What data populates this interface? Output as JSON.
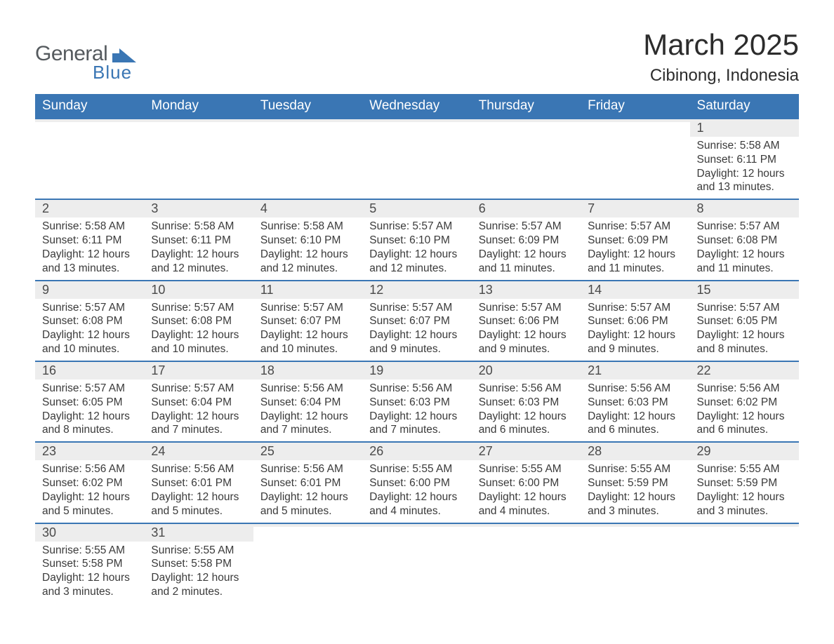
{
  "brand": {
    "word1": "General",
    "word2": "Blue",
    "flag_color": "#3a76b4"
  },
  "title": "March 2025",
  "location": "Cibinong, Indonesia",
  "header_bg": "#3a76b4",
  "header_fg": "#ffffff",
  "daynum_bg": "#ededed",
  "row_border": "#3a76b4",
  "columns": [
    "Sunday",
    "Monday",
    "Tuesday",
    "Wednesday",
    "Thursday",
    "Friday",
    "Saturday"
  ],
  "weeks": [
    [
      {
        "n": "",
        "sr": "",
        "ss": "",
        "dl": ""
      },
      {
        "n": "",
        "sr": "",
        "ss": "",
        "dl": ""
      },
      {
        "n": "",
        "sr": "",
        "ss": "",
        "dl": ""
      },
      {
        "n": "",
        "sr": "",
        "ss": "",
        "dl": ""
      },
      {
        "n": "",
        "sr": "",
        "ss": "",
        "dl": ""
      },
      {
        "n": "",
        "sr": "",
        "ss": "",
        "dl": ""
      },
      {
        "n": "1",
        "sr": "Sunrise: 5:58 AM",
        "ss": "Sunset: 6:11 PM",
        "dl": "Daylight: 12 hours and 13 minutes."
      }
    ],
    [
      {
        "n": "2",
        "sr": "Sunrise: 5:58 AM",
        "ss": "Sunset: 6:11 PM",
        "dl": "Daylight: 12 hours and 13 minutes."
      },
      {
        "n": "3",
        "sr": "Sunrise: 5:58 AM",
        "ss": "Sunset: 6:11 PM",
        "dl": "Daylight: 12 hours and 12 minutes."
      },
      {
        "n": "4",
        "sr": "Sunrise: 5:58 AM",
        "ss": "Sunset: 6:10 PM",
        "dl": "Daylight: 12 hours and 12 minutes."
      },
      {
        "n": "5",
        "sr": "Sunrise: 5:57 AM",
        "ss": "Sunset: 6:10 PM",
        "dl": "Daylight: 12 hours and 12 minutes."
      },
      {
        "n": "6",
        "sr": "Sunrise: 5:57 AM",
        "ss": "Sunset: 6:09 PM",
        "dl": "Daylight: 12 hours and 11 minutes."
      },
      {
        "n": "7",
        "sr": "Sunrise: 5:57 AM",
        "ss": "Sunset: 6:09 PM",
        "dl": "Daylight: 12 hours and 11 minutes."
      },
      {
        "n": "8",
        "sr": "Sunrise: 5:57 AM",
        "ss": "Sunset: 6:08 PM",
        "dl": "Daylight: 12 hours and 11 minutes."
      }
    ],
    [
      {
        "n": "9",
        "sr": "Sunrise: 5:57 AM",
        "ss": "Sunset: 6:08 PM",
        "dl": "Daylight: 12 hours and 10 minutes."
      },
      {
        "n": "10",
        "sr": "Sunrise: 5:57 AM",
        "ss": "Sunset: 6:08 PM",
        "dl": "Daylight: 12 hours and 10 minutes."
      },
      {
        "n": "11",
        "sr": "Sunrise: 5:57 AM",
        "ss": "Sunset: 6:07 PM",
        "dl": "Daylight: 12 hours and 10 minutes."
      },
      {
        "n": "12",
        "sr": "Sunrise: 5:57 AM",
        "ss": "Sunset: 6:07 PM",
        "dl": "Daylight: 12 hours and 9 minutes."
      },
      {
        "n": "13",
        "sr": "Sunrise: 5:57 AM",
        "ss": "Sunset: 6:06 PM",
        "dl": "Daylight: 12 hours and 9 minutes."
      },
      {
        "n": "14",
        "sr": "Sunrise: 5:57 AM",
        "ss": "Sunset: 6:06 PM",
        "dl": "Daylight: 12 hours and 9 minutes."
      },
      {
        "n": "15",
        "sr": "Sunrise: 5:57 AM",
        "ss": "Sunset: 6:05 PM",
        "dl": "Daylight: 12 hours and 8 minutes."
      }
    ],
    [
      {
        "n": "16",
        "sr": "Sunrise: 5:57 AM",
        "ss": "Sunset: 6:05 PM",
        "dl": "Daylight: 12 hours and 8 minutes."
      },
      {
        "n": "17",
        "sr": "Sunrise: 5:57 AM",
        "ss": "Sunset: 6:04 PM",
        "dl": "Daylight: 12 hours and 7 minutes."
      },
      {
        "n": "18",
        "sr": "Sunrise: 5:56 AM",
        "ss": "Sunset: 6:04 PM",
        "dl": "Daylight: 12 hours and 7 minutes."
      },
      {
        "n": "19",
        "sr": "Sunrise: 5:56 AM",
        "ss": "Sunset: 6:03 PM",
        "dl": "Daylight: 12 hours and 7 minutes."
      },
      {
        "n": "20",
        "sr": "Sunrise: 5:56 AM",
        "ss": "Sunset: 6:03 PM",
        "dl": "Daylight: 12 hours and 6 minutes."
      },
      {
        "n": "21",
        "sr": "Sunrise: 5:56 AM",
        "ss": "Sunset: 6:03 PM",
        "dl": "Daylight: 12 hours and 6 minutes."
      },
      {
        "n": "22",
        "sr": "Sunrise: 5:56 AM",
        "ss": "Sunset: 6:02 PM",
        "dl": "Daylight: 12 hours and 6 minutes."
      }
    ],
    [
      {
        "n": "23",
        "sr": "Sunrise: 5:56 AM",
        "ss": "Sunset: 6:02 PM",
        "dl": "Daylight: 12 hours and 5 minutes."
      },
      {
        "n": "24",
        "sr": "Sunrise: 5:56 AM",
        "ss": "Sunset: 6:01 PM",
        "dl": "Daylight: 12 hours and 5 minutes."
      },
      {
        "n": "25",
        "sr": "Sunrise: 5:56 AM",
        "ss": "Sunset: 6:01 PM",
        "dl": "Daylight: 12 hours and 5 minutes."
      },
      {
        "n": "26",
        "sr": "Sunrise: 5:55 AM",
        "ss": "Sunset: 6:00 PM",
        "dl": "Daylight: 12 hours and 4 minutes."
      },
      {
        "n": "27",
        "sr": "Sunrise: 5:55 AM",
        "ss": "Sunset: 6:00 PM",
        "dl": "Daylight: 12 hours and 4 minutes."
      },
      {
        "n": "28",
        "sr": "Sunrise: 5:55 AM",
        "ss": "Sunset: 5:59 PM",
        "dl": "Daylight: 12 hours and 3 minutes."
      },
      {
        "n": "29",
        "sr": "Sunrise: 5:55 AM",
        "ss": "Sunset: 5:59 PM",
        "dl": "Daylight: 12 hours and 3 minutes."
      }
    ],
    [
      {
        "n": "30",
        "sr": "Sunrise: 5:55 AM",
        "ss": "Sunset: 5:58 PM",
        "dl": "Daylight: 12 hours and 3 minutes."
      },
      {
        "n": "31",
        "sr": "Sunrise: 5:55 AM",
        "ss": "Sunset: 5:58 PM",
        "dl": "Daylight: 12 hours and 2 minutes."
      },
      {
        "n": "",
        "sr": "",
        "ss": "",
        "dl": ""
      },
      {
        "n": "",
        "sr": "",
        "ss": "",
        "dl": ""
      },
      {
        "n": "",
        "sr": "",
        "ss": "",
        "dl": ""
      },
      {
        "n": "",
        "sr": "",
        "ss": "",
        "dl": ""
      },
      {
        "n": "",
        "sr": "",
        "ss": "",
        "dl": ""
      }
    ]
  ]
}
